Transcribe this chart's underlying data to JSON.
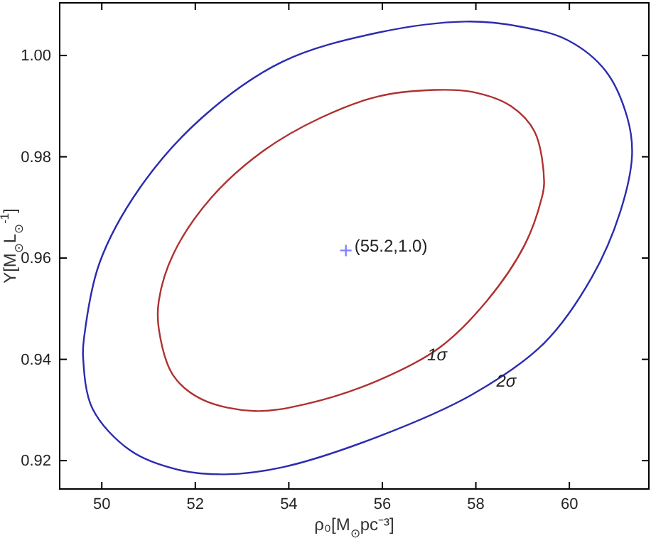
{
  "chart_data": {
    "type": "scatter",
    "xlabel": "ρ₀[M$_{⊙}$pc⁻³]",
    "ylabel": "Υ[M$_{⊙}$L$_{⊙}$$^{-1}$]",
    "xlim": [
      49.1,
      61.7
    ],
    "xticks": [
      50,
      52,
      54,
      56,
      58,
      60
    ],
    "ylim": [
      0.9144,
      1.0104
    ],
    "yticks": [
      0.92,
      0.94,
      0.96,
      0.98,
      {
        "value": 1.0,
        "label": "1.00"
      }
    ],
    "grid": false,
    "marker": "cross",
    "series": [
      {
        "color": "#8080ff",
        "x": [
          55.22
        ],
        "values": [
          0.9615
        ]
      }
    ],
    "annotations": [
      {
        "text": "(55.2,1.0)",
        "x": 55.22,
        "y": 0.9615
      },
      "1σ",
      "2σ"
    ]
  }
}
